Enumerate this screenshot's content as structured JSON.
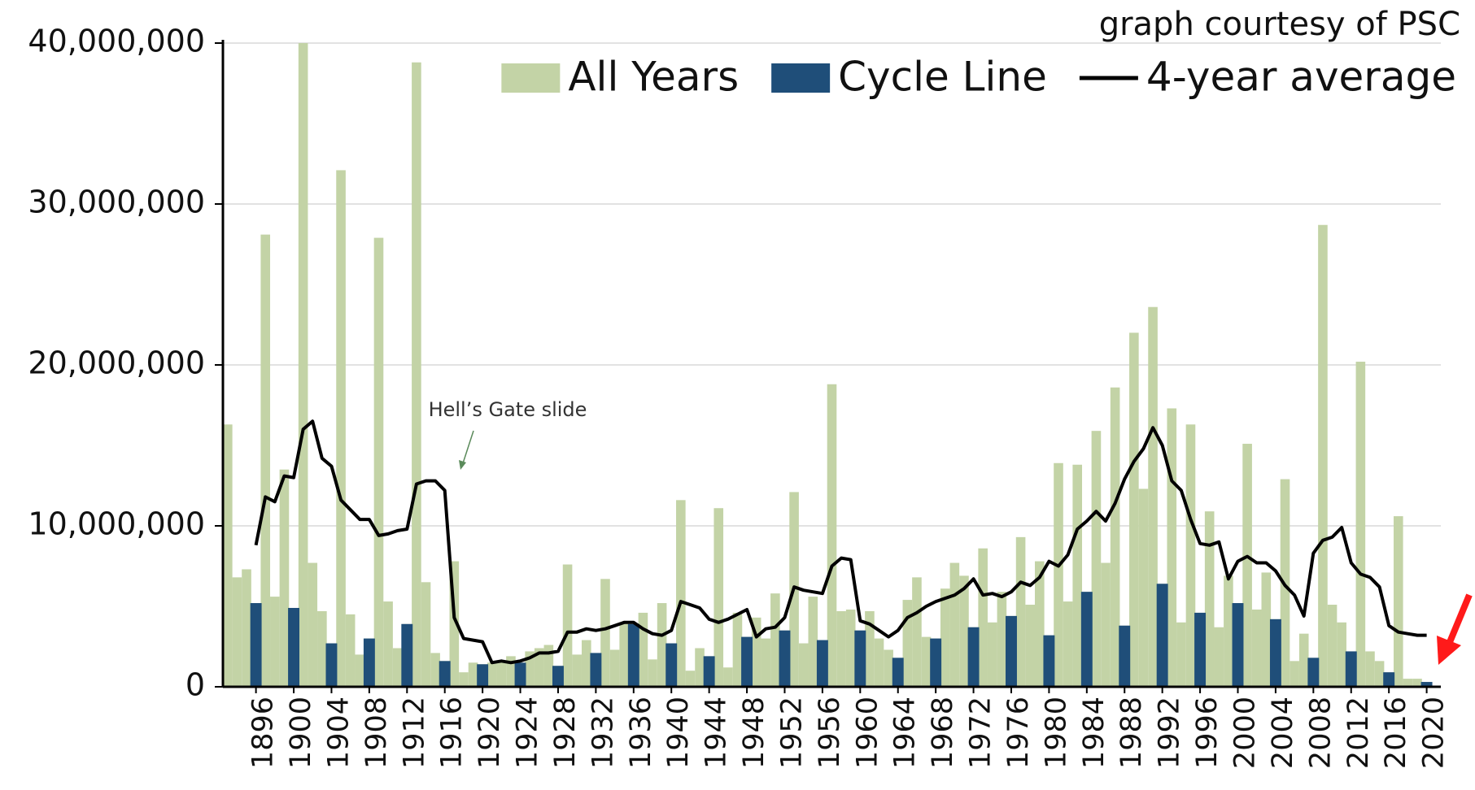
{
  "chart_data": {
    "type": "bar",
    "source": "graph courtesy of PSC",
    "annotations": [
      {
        "text": "Hell’s Gate slide"
      }
    ],
    "legend": "upper right",
    "grid": true,
    "xlim": [
      1892.5,
      2021.5
    ],
    "ylim": [
      0,
      40000000
    ],
    "yticks": [
      0,
      {
        "value": 10000000,
        "label": "10,000,000"
      },
      {
        "value": 20000000,
        "label": "20,000,000"
      },
      {
        "value": 30000000,
        "label": "30,000,000"
      },
      {
        "value": 40000000,
        "label": "40,000,000"
      }
    ],
    "xticks": [
      1896,
      1900,
      1904,
      1908,
      1912,
      1916,
      1920,
      1924,
      1928,
      1932,
      1936,
      1940,
      1944,
      1948,
      1952,
      1956,
      1960,
      1964,
      1968,
      1972,
      1976,
      1980,
      1984,
      1988,
      1992,
      1996,
      2000,
      2004,
      2008,
      2012,
      2016,
      2020
    ],
    "x": [
      1893,
      1894,
      1895,
      1896,
      1897,
      1898,
      1899,
      1900,
      1901,
      1902,
      1903,
      1904,
      1905,
      1906,
      1907,
      1908,
      1909,
      1910,
      1911,
      1912,
      1913,
      1914,
      1915,
      1916,
      1917,
      1918,
      1919,
      1920,
      1921,
      1922,
      1923,
      1924,
      1925,
      1926,
      1927,
      1928,
      1929,
      1930,
      1931,
      1932,
      1933,
      1934,
      1935,
      1936,
      1937,
      1938,
      1939,
      1940,
      1941,
      1942,
      1943,
      1944,
      1945,
      1946,
      1947,
      1948,
      1949,
      1950,
      1951,
      1952,
      1953,
      1954,
      1955,
      1956,
      1957,
      1958,
      1959,
      1960,
      1961,
      1962,
      1963,
      1964,
      1965,
      1966,
      1967,
      1968,
      1969,
      1970,
      1971,
      1972,
      1973,
      1974,
      1975,
      1976,
      1977,
      1978,
      1979,
      1980,
      1981,
      1982,
      1983,
      1984,
      1985,
      1986,
      1987,
      1988,
      1989,
      1990,
      1991,
      1992,
      1993,
      1994,
      1995,
      1996,
      1997,
      1998,
      1999,
      2000,
      2001,
      2002,
      2003,
      2004,
      2005,
      2006,
      2007,
      2008,
      2009,
      2010,
      2011,
      2012,
      2013,
      2014,
      2015,
      2016,
      2017,
      2018,
      2019,
      2020
    ],
    "series": [
      {
        "name": "All Years",
        "type": "bar",
        "color": "#c3d3a6",
        "values": [
          16300000,
          6800000,
          7300000,
          5200000,
          28100000,
          5600000,
          13500000,
          4900000,
          40000000,
          7700000,
          4700000,
          2700000,
          32100000,
          4500000,
          2000000,
          3000000,
          27900000,
          5300000,
          2400000,
          3900000,
          38800000,
          6500000,
          2100000,
          1600000,
          7800000,
          900000,
          1500000,
          1400000,
          1500000,
          1600000,
          1900000,
          1500000,
          2200000,
          2400000,
          2600000,
          1300000,
          7600000,
          2000000,
          2900000,
          2100000,
          6700000,
          2300000,
          4000000,
          3900000,
          4600000,
          1700000,
          5200000,
          2700000,
          11600000,
          1000000,
          2400000,
          1900000,
          11100000,
          1200000,
          4600000,
          3100000,
          4300000,
          3000000,
          5800000,
          3500000,
          12100000,
          2700000,
          5600000,
          2900000,
          18800000,
          4700000,
          4800000,
          3500000,
          4700000,
          3000000,
          2300000,
          1800000,
          5400000,
          6800000,
          3100000,
          3000000,
          6100000,
          7700000,
          6900000,
          3700000,
          8600000,
          4000000,
          5900000,
          4400000,
          9300000,
          5100000,
          7800000,
          3200000,
          13900000,
          5300000,
          13800000,
          5900000,
          15900000,
          7700000,
          18600000,
          3800000,
          22000000,
          12300000,
          23600000,
          6400000,
          17300000,
          4000000,
          16300000,
          4600000,
          10900000,
          3700000,
          6900000,
          5200000,
          15100000,
          4800000,
          7100000,
          4200000,
          12900000,
          1600000,
          3300000,
          1800000,
          28700000,
          5100000,
          4000000,
          2200000,
          20200000,
          2200000,
          1600000,
          900000,
          10600000,
          500000,
          500000,
          300000
        ]
      },
      {
        "name": "Cycle Line",
        "type": "bar",
        "color": "#1f4e79",
        "values": [
          null,
          null,
          null,
          5200000,
          null,
          null,
          null,
          4900000,
          null,
          null,
          null,
          2700000,
          null,
          null,
          null,
          3000000,
          null,
          null,
          null,
          3900000,
          null,
          null,
          null,
          1600000,
          null,
          null,
          null,
          1400000,
          null,
          null,
          null,
          1500000,
          null,
          null,
          null,
          1300000,
          null,
          null,
          null,
          2100000,
          null,
          null,
          null,
          3900000,
          null,
          null,
          null,
          2700000,
          null,
          null,
          null,
          1900000,
          null,
          null,
          null,
          3100000,
          null,
          null,
          null,
          3500000,
          null,
          null,
          null,
          2900000,
          null,
          null,
          null,
          3500000,
          null,
          null,
          null,
          1800000,
          null,
          null,
          null,
          3000000,
          null,
          null,
          null,
          3700000,
          null,
          null,
          null,
          4400000,
          null,
          null,
          null,
          3200000,
          null,
          null,
          null,
          5900000,
          null,
          null,
          null,
          3800000,
          null,
          null,
          null,
          6400000,
          null,
          null,
          null,
          4600000,
          null,
          null,
          null,
          5200000,
          null,
          null,
          null,
          4200000,
          null,
          null,
          null,
          1800000,
          null,
          null,
          null,
          2200000,
          null,
          null,
          null,
          900000,
          null,
          null,
          null,
          300000
        ]
      },
      {
        "name": "4-year average",
        "type": "line",
        "color": "#000000",
        "values": [
          null,
          null,
          null,
          8800000,
          11800000,
          11500000,
          13100000,
          13000000,
          16000000,
          16500000,
          14200000,
          13700000,
          11600000,
          11000000,
          10400000,
          10400000,
          9400000,
          9500000,
          9700000,
          9800000,
          12600000,
          12800000,
          12800000,
          12200000,
          4300000,
          3000000,
          2900000,
          2800000,
          1500000,
          1600000,
          1500000,
          1600000,
          1800000,
          2100000,
          2100000,
          2200000,
          3400000,
          3400000,
          3600000,
          3500000,
          3600000,
          3800000,
          4000000,
          4000000,
          3600000,
          3300000,
          3200000,
          3500000,
          5300000,
          5100000,
          4900000,
          4200000,
          4000000,
          4200000,
          4500000,
          4800000,
          3100000,
          3600000,
          3700000,
          4300000,
          6200000,
          6000000,
          5900000,
          5800000,
          7500000,
          8000000,
          7900000,
          4100000,
          3900000,
          3500000,
          3100000,
          3500000,
          4300000,
          4600000,
          5000000,
          5300000,
          5500000,
          5700000,
          6100000,
          6700000,
          5700000,
          5800000,
          5600000,
          5900000,
          6500000,
          6300000,
          6800000,
          7800000,
          7500000,
          8200000,
          9800000,
          10300000,
          10900000,
          10300000,
          11400000,
          12900000,
          14000000,
          14800000,
          16100000,
          15000000,
          12800000,
          12200000,
          10400000,
          8900000,
          8800000,
          9000000,
          6700000,
          7800000,
          8100000,
          7700000,
          7700000,
          7200000,
          6300000,
          5700000,
          4400000,
          8300000,
          9100000,
          9300000,
          9900000,
          7700000,
          7000000,
          6800000,
          6200000,
          3800000,
          3400000,
          3300000,
          3200000,
          3200000
        ]
      }
    ]
  }
}
